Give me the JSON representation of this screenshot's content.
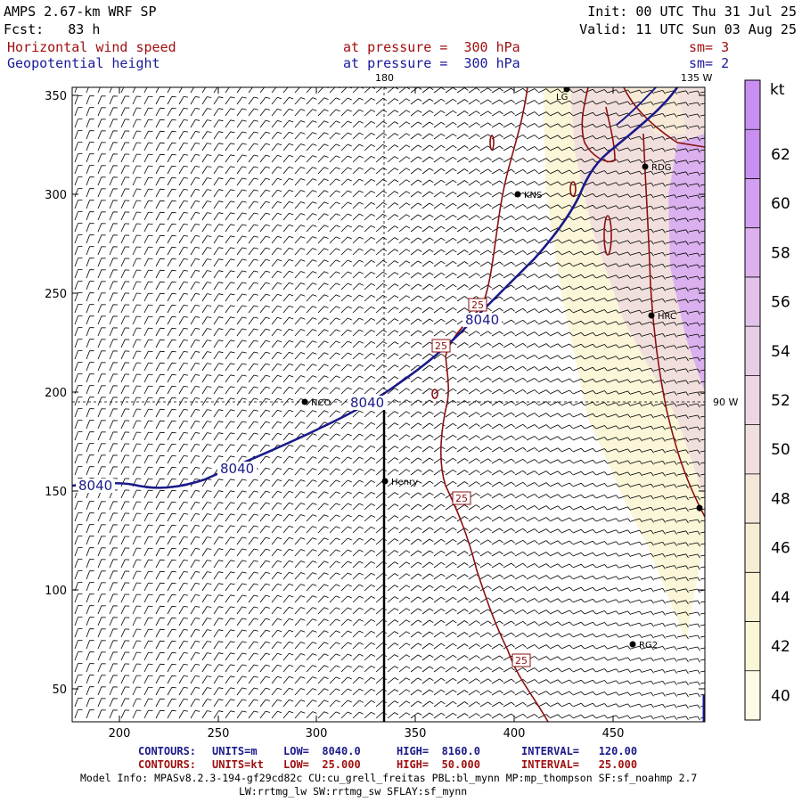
{
  "header": {
    "model": "AMPS 2.67-km WRF SP",
    "fcst": "Fcst:   83 h",
    "init": "Init: 00 UTC Thu 31 Jul 25",
    "valid": "Valid: 11 UTC Sun 03 Aug 25",
    "field1_name": "Horizontal wind speed",
    "field1_level": "at pressure =  300 hPa",
    "field1_sm": "sm= 3",
    "field2_name": "Geopotential height",
    "field2_level": "at pressure =  300 hPa",
    "field2_sm": "sm= 2"
  },
  "map": {
    "lon_top_180": "180",
    "lon_top_135w": "135 W",
    "lon_right_90w": "90 W",
    "x_ticks": [
      "200",
      "250",
      "300",
      "350",
      "400",
      "450"
    ],
    "y_ticks": [
      "350",
      "300",
      "250",
      "200",
      "150",
      "100",
      "50"
    ],
    "stations": [
      "KNS",
      "RDG",
      "HRC",
      "NCO",
      "Henry",
      "RG2",
      "LG"
    ],
    "height_contour_label": "8040",
    "speed_contour_label": "25",
    "colors": {
      "height_contour": "#1a1a8a",
      "speed_contour": "#8b1010",
      "shade_low": "#fbf6d8",
      "shade_mid": "#f0dadd",
      "shade_high": "#cf9cf0"
    }
  },
  "colorbar": {
    "unit": "kt",
    "labels": [
      "62",
      "60",
      "58",
      "56",
      "54",
      "52",
      "50",
      "48",
      "46",
      "44",
      "42",
      "40"
    ],
    "colors": [
      "#c88ff0",
      "#d39ff0",
      "#dcb2ee",
      "#e3c2ea",
      "#e8cde6",
      "#edd6e2",
      "#f1dfdd",
      "#f4e6d9",
      "#f7edd6",
      "#f9f2d4",
      "#fbf6d6",
      "#fdfbe6"
    ]
  },
  "footer": {
    "line1_label": "CONTOURS:",
    "line1_units": "UNITS=m",
    "line1_low": "LOW=  8040.0",
    "line1_high": "HIGH=  8160.0",
    "line1_interval": "INTERVAL=   120.00",
    "line2_label": "CONTOURS:",
    "line2_units": "UNITS=kt",
    "line2_low": "LOW=  25.000",
    "line2_high": "HIGH=  50.000",
    "line2_interval": "INTERVAL=   25.000",
    "model_info": "Model Info: MPASv8.2.3-194-gf29cd82c CU:cu_grell_freitas PBL:bl_mynn MP:mp_thompson SF:sf_noahmp 2.7",
    "model_info2": "LW:rrtmg_lw SW:rrtmg_sw SFLAY:sf_mynn"
  }
}
